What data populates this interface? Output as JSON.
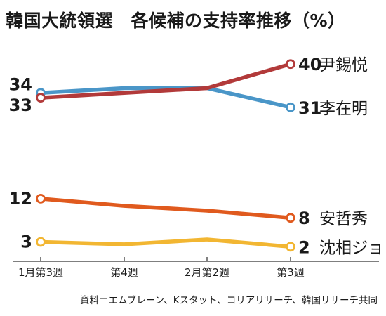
{
  "chart_data": {
    "type": "line",
    "title": "韓国大統領選　各候補の支持率推移（%）",
    "source": "資料＝エムブレーン、Kスタット、コリアリサーチ、韓国リサーチ共同",
    "categories": [
      "1月第3週",
      "第4週",
      "2月第2週",
      "第3週"
    ],
    "ylim": [
      0,
      45
    ],
    "xlabel": "",
    "ylabel": "",
    "grid": false,
    "legend": "none",
    "series": [
      {
        "name": "李在明",
        "values": [
          34,
          35,
          35,
          31
        ],
        "start_label": "34",
        "end_label": "31",
        "color": "#4a96c8"
      },
      {
        "name": "尹錫悦",
        "values": [
          33,
          34,
          35,
          40
        ],
        "start_label": "33",
        "end_label": "40",
        "color": "#b23a3a"
      },
      {
        "name": "安哲秀",
        "values": [
          12,
          10.5,
          9.5,
          8
        ],
        "start_label": "12",
        "end_label": "8",
        "color": "#e05a1e"
      },
      {
        "name": "沈相ジョン",
        "values": [
          3,
          2.5,
          3.5,
          2
        ],
        "start_label": "3",
        "end_label": "2",
        "color": "#f2b632"
      }
    ]
  }
}
